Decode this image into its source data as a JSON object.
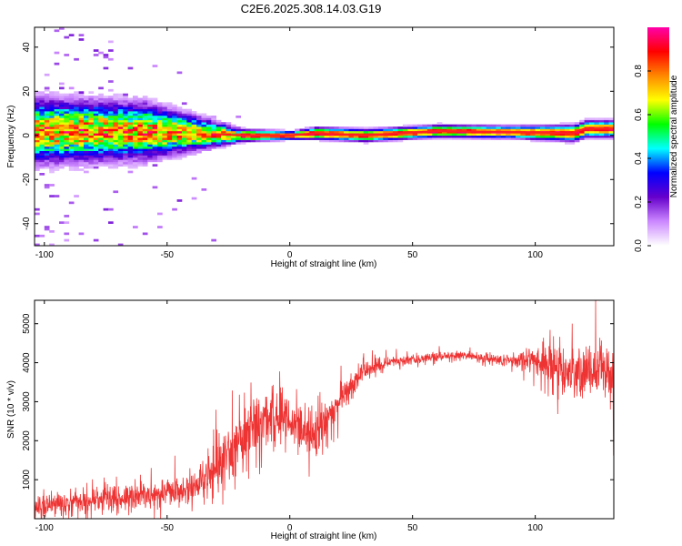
{
  "title": "C2E6.2025.308.14.03.G19",
  "chart_data": [
    {
      "type": "heatmap",
      "xlabel": "Height of straight line (km)",
      "ylabel": "Frequency (Hz)",
      "xlim": [
        -104,
        132
      ],
      "ylim": [
        -50,
        49
      ],
      "xticks": [
        -100,
        -50,
        0,
        50,
        100
      ],
      "yticks": [
        -40,
        -20,
        0,
        20,
        40
      ],
      "grid": false,
      "colorbar": {
        "label": "Normalized spectral amplitude",
        "range": [
          0.0,
          1.0
        ],
        "ticks": [
          "0.0",
          "0.2",
          "0.4",
          "0.6",
          "0.8"
        ],
        "colors": [
          "#ffffff",
          "#cc88ff",
          "#6600cc",
          "#0000ff",
          "#00ffff",
          "#00ff00",
          "#ffff00",
          "#ff8800",
          "#ff0000",
          "#ff00aa"
        ]
      },
      "ridge": {
        "description_height_km": [
          -104,
          -60,
          -30,
          -20,
          0,
          10,
          30,
          60,
          90,
          115,
          120,
          132
        ],
        "frequency_hz": [
          2,
          2,
          0.5,
          0,
          0,
          1,
          0,
          2,
          1.5,
          1,
          3,
          3
        ],
        "spread_hz": [
          8,
          7,
          3,
          1.5,
          1,
          1.5,
          1.5,
          1.5,
          1.5,
          2,
          2,
          2
        ]
      }
    },
    {
      "type": "line",
      "xlabel": "Height of straight line (km)",
      "ylabel": "SNR (10 * v/v)",
      "xlim": [
        -104,
        132
      ],
      "ylim": [
        0,
        5600
      ],
      "xticks": [
        -100,
        -50,
        0,
        50,
        100
      ],
      "yticks": [
        1000,
        2000,
        3000,
        4000,
        5000
      ],
      "grid": false,
      "color": "#ee3333",
      "trend": {
        "x": [
          -104,
          -80,
          -50,
          -40,
          -30,
          -20,
          -10,
          0,
          10,
          20,
          30,
          40,
          50,
          60,
          70,
          80,
          90,
          100,
          110,
          120,
          132
        ],
        "mean": [
          300,
          450,
          650,
          800,
          1200,
          2200,
          2700,
          2500,
          2100,
          3000,
          3800,
          4000,
          4100,
          4150,
          4200,
          4100,
          4050,
          4050,
          3800,
          3800,
          3700
        ],
        "noise": [
          250,
          250,
          300,
          350,
          500,
          700,
          600,
          450,
          450,
          400,
          200,
          120,
          100,
          100,
          100,
          120,
          150,
          300,
          450,
          550,
          600
        ]
      }
    }
  ]
}
